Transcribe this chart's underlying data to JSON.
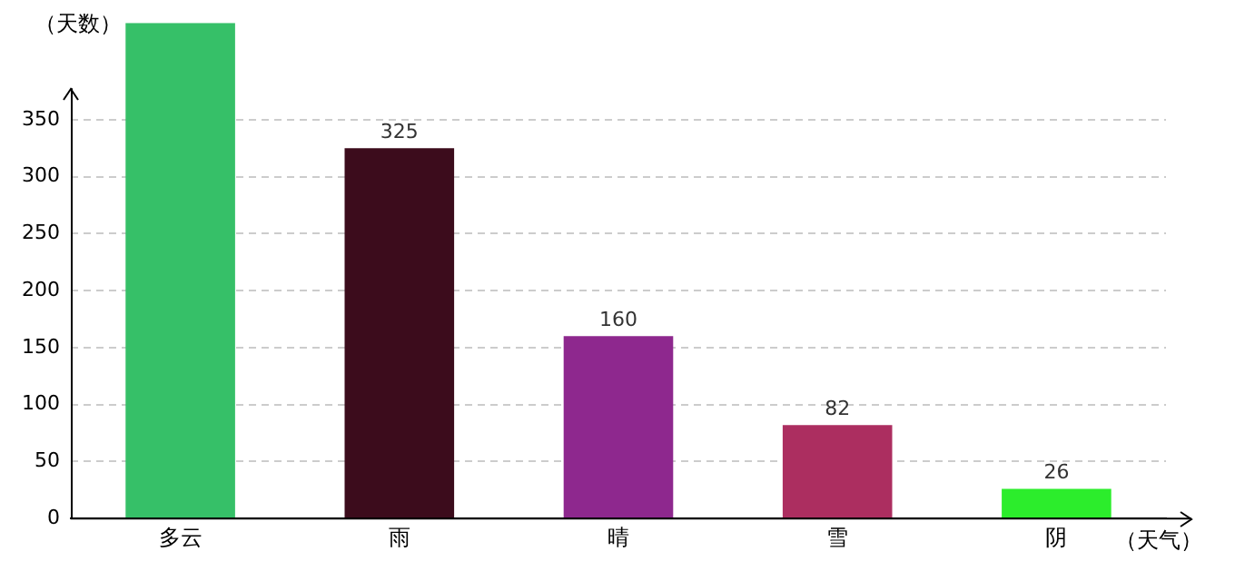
{
  "chart_data": {
    "type": "bar",
    "ylabel": "（天数）",
    "xlabel": "（天气）",
    "categories": [
      "多云",
      "雨",
      "晴",
      "雪",
      "阴"
    ],
    "values": [
      435,
      325,
      160,
      82,
      26
    ],
    "value_labels": [
      null,
      "325",
      "160",
      "82",
      "26"
    ],
    "colors": [
      "#36c068",
      "#3c0c1c",
      "#8e288e",
      "#ac2e60",
      "#2ced2c"
    ],
    "ylim": [
      0,
      435
    ],
    "yticks": [
      0,
      50,
      100,
      150,
      200,
      250,
      300,
      350
    ],
    "grid": "y",
    "legend": false
  }
}
